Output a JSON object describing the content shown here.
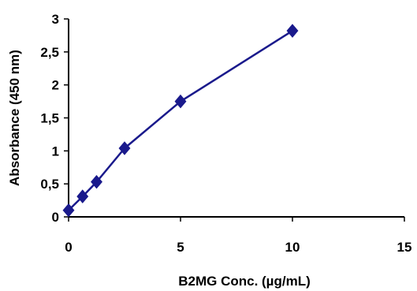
{
  "chart_data": {
    "type": "line",
    "title": "",
    "xlabel": "B2MG Conc. (µg/mL)",
    "ylabel": "Absorbance (450 nm)",
    "xlim": [
      0,
      15
    ],
    "ylim": [
      0,
      3
    ],
    "x_ticks": [
      0,
      5,
      10,
      15
    ],
    "x_tick_labels": [
      "0",
      "5",
      "10",
      "15"
    ],
    "y_ticks": [
      0,
      0.5,
      1,
      1.5,
      2,
      2.5,
      3
    ],
    "y_tick_labels": [
      "0",
      "0,5",
      "1",
      "1,5",
      "2",
      "2,5",
      "3"
    ],
    "grid": false,
    "legend": "none",
    "series": [
      {
        "color": "#1a1a8c",
        "marker": "diamond",
        "x": [
          0,
          0.625,
          1.25,
          2.5,
          5,
          10
        ],
        "y": [
          0.1,
          0.31,
          0.53,
          1.04,
          1.75,
          2.82
        ]
      }
    ]
  }
}
